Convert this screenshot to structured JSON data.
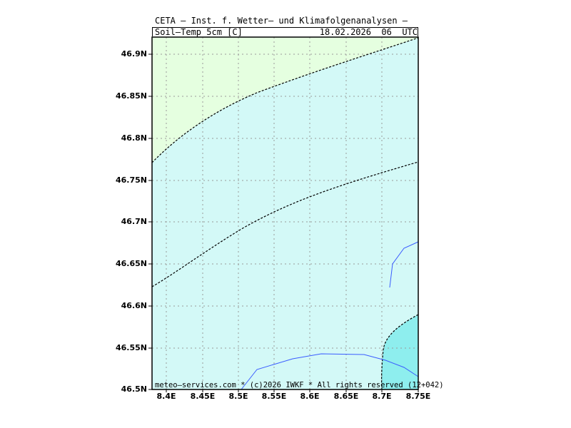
{
  "header": {
    "title": "CETA — Inst. f. Wetter— und Klimafolgenanalysen —",
    "parameter": "Soil—Temp_5cm_[C]",
    "valid_time": "18.02.2026  06  UTC"
  },
  "footer": {
    "credit": "meteo—services.com * (c)2026 IWKF * All rights reserved (12+042)"
  },
  "axes": {
    "lat_labels": [
      "46.9N",
      "46.85N",
      "46.8N",
      "46.75N",
      "46.7N",
      "46.65N",
      "46.6N",
      "46.55N",
      "46.5N"
    ],
    "lon_labels": [
      "8.4E",
      "8.45E",
      "8.5E",
      "8.55E",
      "8.6E",
      "8.65E",
      "8.7E",
      "8.75E"
    ],
    "lat_range": [
      46.5,
      46.92
    ],
    "lon_range": [
      8.38,
      8.75
    ]
  },
  "colors": {
    "zone_cold": "#e5ffe0",
    "zone_mid": "#d3f9f7",
    "zone_warm": "#8eeeee",
    "grid": "#9a9a9a",
    "contour": "#000000",
    "river": "#3b5cff"
  }
}
